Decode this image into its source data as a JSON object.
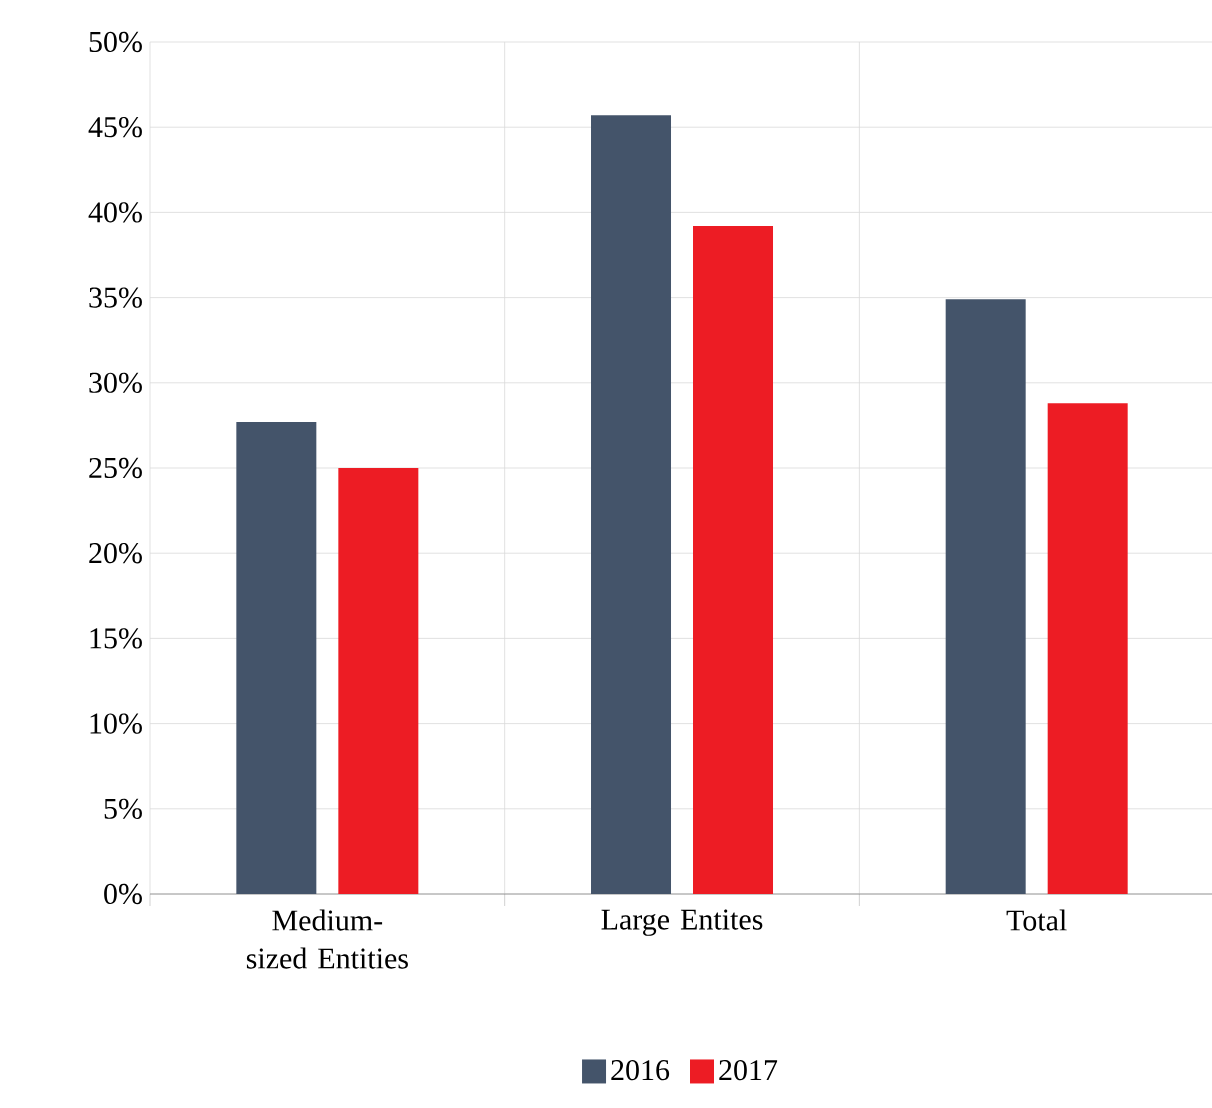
{
  "chart_data": {
    "type": "bar",
    "categories": [
      "Medium-sized Entities",
      "Large Entites",
      "Total"
    ],
    "series": [
      {
        "name": "2016",
        "color": "#44546a",
        "values": [
          27.7,
          45.7,
          34.9
        ]
      },
      {
        "name": "2017",
        "color": "#ed1c24",
        "values": [
          25.0,
          39.2,
          28.8
        ]
      }
    ],
    "ylim": [
      0,
      50
    ],
    "yticks": [
      {
        "value": 0,
        "label": "0%"
      },
      {
        "value": 5,
        "label": "5%"
      },
      {
        "value": 10,
        "label": "10%"
      },
      {
        "value": 15,
        "label": "15%"
      },
      {
        "value": 20,
        "label": "20%"
      },
      {
        "value": 25,
        "label": "25%"
      },
      {
        "value": 30,
        "label": "30%"
      },
      {
        "value": 35,
        "label": "35%"
      },
      {
        "value": 40,
        "label": "40%"
      },
      {
        "value": 45,
        "label": "45%"
      },
      {
        "value": 50,
        "label": "50%"
      }
    ],
    "grid": true,
    "legend": "bottom"
  }
}
